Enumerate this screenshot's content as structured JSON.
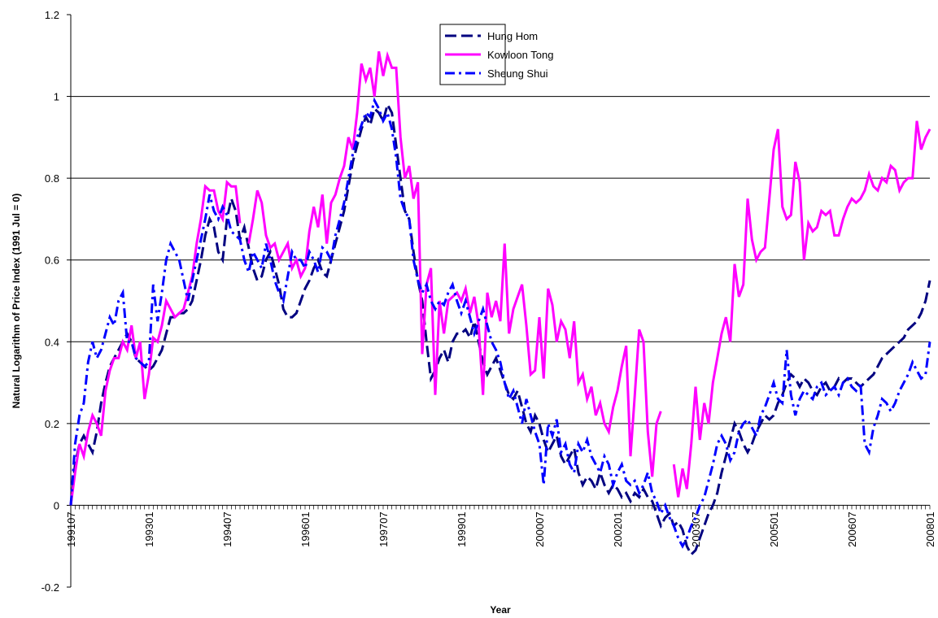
{
  "chart_data": {
    "type": "line",
    "x_label": "Year",
    "y_label": "Natural Logarithm of Price Index (1991 Jul = 0)",
    "ylim": [
      -0.2,
      1.2
    ],
    "yticks": [
      -0.2,
      0,
      0.2,
      0.4,
      0.6,
      0.8,
      1,
      1.2
    ],
    "grid": true,
    "legend": "top",
    "categories": [
      "199107",
      null,
      null,
      null,
      null,
      null,
      null,
      null,
      null,
      null,
      null,
      null,
      null,
      null,
      null,
      null,
      null,
      null,
      "199301",
      null,
      null,
      null,
      null,
      null,
      null,
      null,
      null,
      null,
      null,
      null,
      null,
      null,
      null,
      null,
      null,
      null,
      "199407",
      null,
      null,
      null,
      null,
      null,
      null,
      null,
      null,
      null,
      null,
      null,
      null,
      null,
      null,
      null,
      null,
      null,
      "199601",
      null,
      null,
      null,
      null,
      null,
      null,
      null,
      null,
      null,
      null,
      null,
      null,
      null,
      null,
      null,
      null,
      null,
      "199707",
      null,
      null,
      null,
      null,
      null,
      null,
      null,
      null,
      null,
      null,
      null,
      null,
      null,
      null,
      null,
      null,
      null,
      "199901",
      null,
      null,
      null,
      null,
      null,
      null,
      null,
      null,
      null,
      null,
      null,
      null,
      null,
      null,
      null,
      null,
      null,
      "200007",
      null,
      null,
      null,
      null,
      null,
      null,
      null,
      null,
      null,
      null,
      null,
      null,
      null,
      null,
      null,
      null,
      null,
      "200201",
      null,
      null,
      null,
      null,
      null,
      null,
      null,
      null,
      null,
      null,
      null,
      null,
      null,
      null,
      null,
      null,
      null,
      "200307",
      null,
      null,
      null,
      null,
      null,
      null,
      null,
      null,
      null,
      null,
      null,
      null,
      null,
      null,
      null,
      null,
      null,
      "200501",
      null,
      null,
      null,
      null,
      null,
      null,
      null,
      null,
      null,
      null,
      null,
      null,
      null,
      null,
      null,
      null,
      null,
      "200607",
      null,
      null,
      null,
      null,
      null,
      null,
      null,
      null,
      null,
      null,
      null,
      null,
      null,
      null,
      null,
      null,
      null,
      "200801"
    ],
    "series": [
      {
        "name": "Hung Hom",
        "color": "#000080",
        "linestyle": "dashed",
        "values": [
          0,
          0.1,
          0.15,
          0.17,
          0.15,
          0.13,
          0.18,
          0.25,
          0.3,
          0.34,
          0.36,
          0.38,
          0.4,
          0.42,
          0.4,
          0.36,
          0.35,
          0.34,
          0.33,
          0.34,
          0.36,
          0.38,
          0.42,
          0.46,
          0.46,
          0.47,
          0.47,
          0.48,
          0.5,
          0.55,
          0.6,
          0.66,
          0.7,
          0.68,
          0.62,
          0.6,
          0.7,
          0.75,
          0.72,
          0.65,
          0.68,
          0.63,
          0.58,
          0.55,
          0.56,
          0.6,
          0.62,
          0.58,
          0.54,
          0.48,
          0.46,
          0.46,
          0.47,
          0.5,
          0.53,
          0.55,
          0.58,
          0.6,
          0.57,
          0.56,
          0.6,
          0.64,
          0.68,
          0.72,
          0.78,
          0.84,
          0.88,
          0.92,
          0.95,
          0.93,
          0.97,
          0.96,
          0.94,
          0.98,
          0.96,
          0.88,
          0.8,
          0.72,
          0.7,
          0.62,
          0.55,
          0.5,
          0.4,
          0.31,
          0.33,
          0.36,
          0.38,
          0.35,
          0.4,
          0.42,
          0.42,
          0.43,
          0.41,
          0.45,
          0.4,
          0.35,
          0.32,
          0.34,
          0.36,
          0.33,
          0.3,
          0.27,
          0.26,
          0.28,
          0.24,
          0.2,
          0.18,
          0.22,
          0.2,
          0.16,
          0.13,
          0.15,
          0.17,
          0.12,
          0.1,
          0.12,
          0.14,
          0.08,
          0.05,
          0.07,
          0.06,
          0.04,
          0.08,
          0.05,
          0.03,
          0.05,
          0.04,
          0.02,
          0.03,
          0.01,
          0.03,
          0.02,
          0.04,
          0.02,
          0.01,
          -0.02,
          -0.05,
          -0.03,
          -0.02,
          -0.05,
          -0.04,
          -0.06,
          -0.1,
          -0.12,
          -0.11,
          -0.08,
          -0.05,
          -0.02,
          0.0,
          0.03,
          0.08,
          0.12,
          0.16,
          0.2,
          0.18,
          0.15,
          0.13,
          0.15,
          0.18,
          0.2,
          0.22,
          0.21,
          0.22,
          0.25,
          0.27,
          0.3,
          0.32,
          0.31,
          0.29,
          0.31,
          0.3,
          0.28,
          0.27,
          0.29,
          0.3,
          0.28,
          0.29,
          0.31,
          0.3,
          0.31,
          0.31,
          0.3,
          0.29,
          0.3,
          0.31,
          0.32,
          0.34,
          0.36,
          0.37,
          0.38,
          0.39,
          0.4,
          0.41,
          0.43,
          0.44,
          0.45,
          0.47,
          0.5,
          0.55
        ]
      },
      {
        "name": "Kowloon Tong",
        "color": "#ff00ff",
        "linestyle": "solid",
        "values": [
          0,
          0.08,
          0.15,
          0.12,
          0.18,
          0.22,
          0.2,
          0.17,
          0.28,
          0.33,
          0.36,
          0.36,
          0.4,
          0.38,
          0.44,
          0.36,
          0.4,
          0.26,
          0.32,
          0.41,
          0.4,
          0.44,
          0.5,
          0.48,
          0.46,
          0.47,
          0.48,
          0.52,
          0.56,
          0.64,
          0.7,
          0.78,
          0.77,
          0.77,
          0.72,
          0.7,
          0.79,
          0.78,
          0.78,
          0.69,
          null,
          0.64,
          0.7,
          0.77,
          0.74,
          0.66,
          0.63,
          0.64,
          0.6,
          0.62,
          0.64,
          0.58,
          0.6,
          0.56,
          0.58,
          0.67,
          0.73,
          0.68,
          0.76,
          0.64,
          0.74,
          0.76,
          0.8,
          0.83,
          0.9,
          0.87,
          0.96,
          1.08,
          1.04,
          1.07,
          1.0,
          1.11,
          1.05,
          1.1,
          1.07,
          1.07,
          0.9,
          0.8,
          0.83,
          0.75,
          0.79,
          0.37,
          0.54,
          0.58,
          0.27,
          0.5,
          0.42,
          0.5,
          0.51,
          0.52,
          0.5,
          0.53,
          0.47,
          0.51,
          0.44,
          0.27,
          0.52,
          0.46,
          0.5,
          0.45,
          0.64,
          0.42,
          0.48,
          0.51,
          0.54,
          0.44,
          0.32,
          0.33,
          0.46,
          0.31,
          0.53,
          0.49,
          0.4,
          0.45,
          0.43,
          0.36,
          0.45,
          0.3,
          0.32,
          0.26,
          0.29,
          0.22,
          0.25,
          0.2,
          0.18,
          0.24,
          0.28,
          0.34,
          0.39,
          0.12,
          0.27,
          0.43,
          0.4,
          0.18,
          0.07,
          0.2,
          0.23,
          null,
          null,
          0.1,
          0.02,
          0.09,
          0.04,
          0.15,
          0.29,
          0.16,
          0.25,
          0.2,
          0.3,
          0.36,
          0.42,
          0.46,
          0.4,
          0.59,
          0.51,
          0.54,
          0.75,
          0.65,
          0.6,
          0.62,
          0.63,
          0.75,
          0.87,
          0.92,
          0.73,
          0.7,
          0.71,
          0.84,
          0.79,
          0.6,
          0.69,
          0.67,
          0.68,
          0.72,
          0.71,
          0.72,
          0.66,
          0.66,
          0.7,
          0.73,
          0.75,
          0.74,
          0.75,
          0.77,
          0.81,
          0.78,
          0.77,
          0.8,
          0.79,
          0.83,
          0.82,
          0.77,
          0.79,
          0.8,
          0.8,
          0.94,
          0.87,
          0.9,
          0.92
        ]
      },
      {
        "name": "Sheung Shui",
        "color": "#0000ff",
        "linestyle": "dashdot",
        "values": [
          0,
          0.15,
          0.22,
          0.25,
          0.35,
          0.4,
          0.36,
          0.38,
          0.42,
          0.46,
          0.44,
          0.5,
          0.52,
          0.4,
          0.4,
          0.36,
          0.35,
          0.34,
          0.35,
          0.54,
          0.45,
          0.52,
          0.6,
          0.64,
          0.62,
          0.6,
          0.55,
          0.5,
          0.55,
          0.6,
          0.65,
          0.7,
          0.76,
          0.72,
          0.7,
          0.73,
          0.71,
          0.67,
          0.66,
          0.65,
          0.6,
          0.57,
          0.62,
          0.6,
          0.58,
          0.64,
          0.6,
          0.55,
          0.52,
          0.5,
          0.56,
          0.62,
          0.6,
          0.6,
          0.58,
          0.62,
          0.6,
          0.57,
          0.63,
          0.62,
          0.6,
          0.66,
          0.7,
          0.74,
          0.8,
          0.86,
          0.9,
          0.93,
          0.96,
          0.95,
          0.99,
          0.97,
          0.94,
          0.96,
          0.92,
          0.85,
          0.75,
          0.72,
          0.7,
          0.6,
          0.55,
          0.52,
          0.54,
          0.5,
          0.48,
          0.5,
          0.49,
          0.52,
          0.54,
          0.5,
          0.47,
          0.5,
          0.46,
          0.42,
          0.45,
          0.48,
          0.44,
          0.4,
          0.38,
          0.35,
          0.3,
          0.26,
          0.28,
          0.24,
          0.2,
          0.26,
          0.22,
          0.18,
          0.15,
          0.05,
          0.2,
          0.17,
          0.21,
          0.13,
          0.15,
          0.1,
          0.08,
          0.15,
          0.13,
          0.16,
          0.12,
          0.1,
          0.08,
          0.12,
          0.1,
          0.05,
          0.08,
          0.1,
          0.06,
          0.05,
          0.06,
          0.03,
          0.05,
          0.08,
          0.03,
          0.01,
          -0.02,
          0.0,
          -0.03,
          -0.05,
          -0.08,
          -0.1,
          -0.08,
          -0.05,
          -0.03,
          0.0,
          0.02,
          0.06,
          0.1,
          0.15,
          0.17,
          0.15,
          0.11,
          0.13,
          0.18,
          0.2,
          0.21,
          0.19,
          0.17,
          0.22,
          0.24,
          0.27,
          0.3,
          0.26,
          0.25,
          0.38,
          0.27,
          0.22,
          0.26,
          0.28,
          0.27,
          0.26,
          0.29,
          0.3,
          0.27,
          0.28,
          0.29,
          0.27,
          0.3,
          0.31,
          0.29,
          0.28,
          0.3,
          0.15,
          0.13,
          0.19,
          0.22,
          0.26,
          0.25,
          0.23,
          0.25,
          0.28,
          0.3,
          0.32,
          0.35,
          0.33,
          0.31,
          0.32,
          0.4
        ]
      }
    ]
  }
}
